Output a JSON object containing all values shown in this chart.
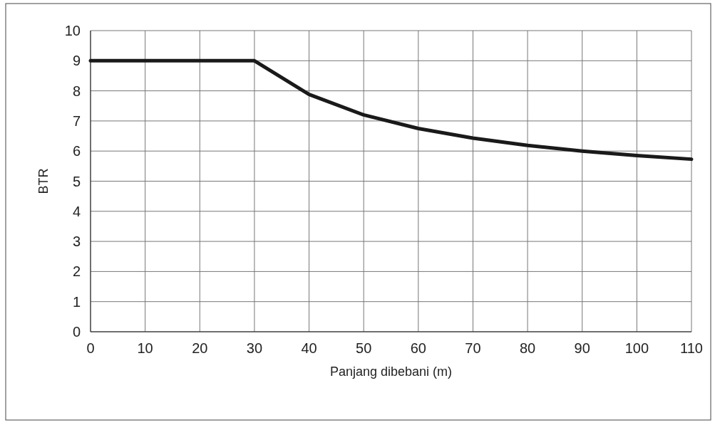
{
  "chart_data": {
    "type": "line",
    "xlabel": "Panjang dibebani (m)",
    "ylabel": "BTR",
    "x": [
      0,
      10,
      20,
      30,
      40,
      50,
      60,
      70,
      80,
      90,
      100,
      110
    ],
    "series": [
      {
        "color": "#1a1a1a",
        "values": [
          9,
          9,
          9,
          9,
          7.88,
          7.2,
          6.75,
          6.43,
          6.19,
          6.0,
          5.85,
          5.73
        ]
      }
    ],
    "xlim": [
      0,
      110
    ],
    "xticks": [
      0,
      10,
      20,
      30,
      40,
      50,
      60,
      70,
      80,
      90,
      100,
      110
    ],
    "ylim": [
      0,
      10
    ],
    "yticks": [
      0,
      1,
      2,
      3,
      4,
      5,
      6,
      7,
      8,
      9,
      10
    ],
    "grid": true,
    "marker": "none",
    "line_style": "solid"
  }
}
